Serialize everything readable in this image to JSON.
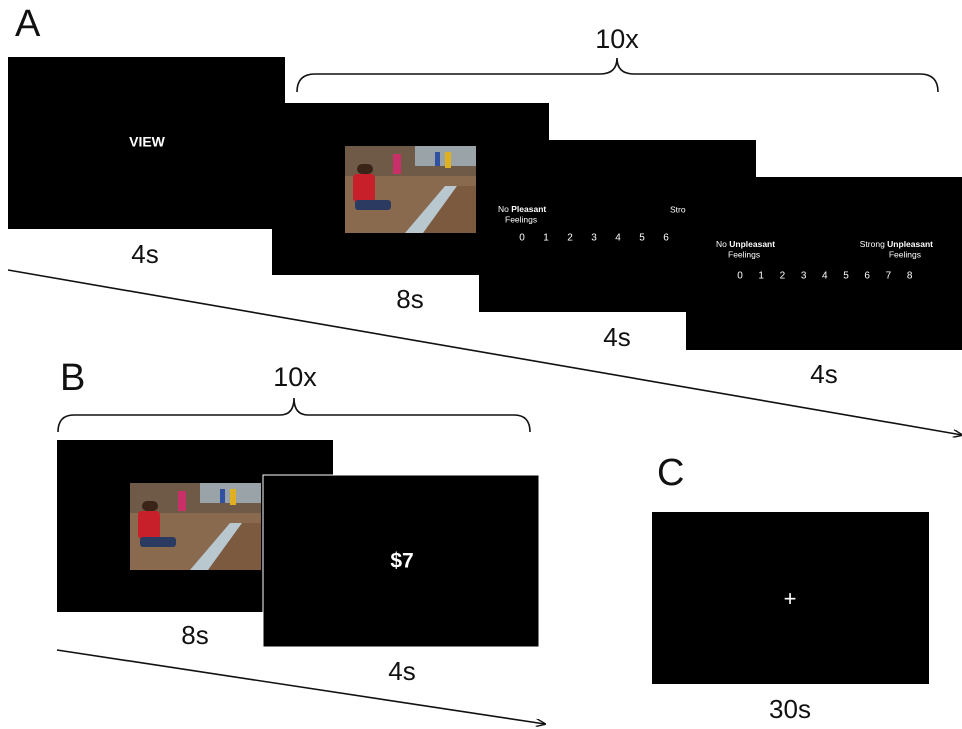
{
  "panel_a": {
    "label": "A",
    "repeat": "10x",
    "view_screen": {
      "text": "VIEW",
      "duration": "4s"
    },
    "image_screen": {
      "duration": "8s"
    },
    "rating_pleasant": {
      "left_prefix": "No",
      "left_emphasis": "Pleasant",
      "left_line2": "Feelings",
      "right_label": "Stro",
      "scale": [
        0,
        1,
        2,
        3,
        4,
        5,
        6
      ],
      "duration": "4s"
    },
    "rating_unpleasant": {
      "left_prefix": "No",
      "left_emphasis": "Unpleasant",
      "left_line2": "Feelings",
      "right_prefix": "Strong",
      "right_emphasis": "Unpleasant",
      "right_line2": "Feelings",
      "scale": [
        0,
        1,
        2,
        3,
        4,
        5,
        6,
        7,
        8
      ],
      "duration": "4s"
    }
  },
  "panel_b": {
    "label": "B",
    "repeat": "10x",
    "image_screen": {
      "duration": "8s"
    },
    "donation_screen": {
      "text": "$7",
      "duration": "4s"
    }
  },
  "panel_c": {
    "label": "C",
    "fixation_screen": {
      "text": "+",
      "duration": "30s"
    }
  }
}
